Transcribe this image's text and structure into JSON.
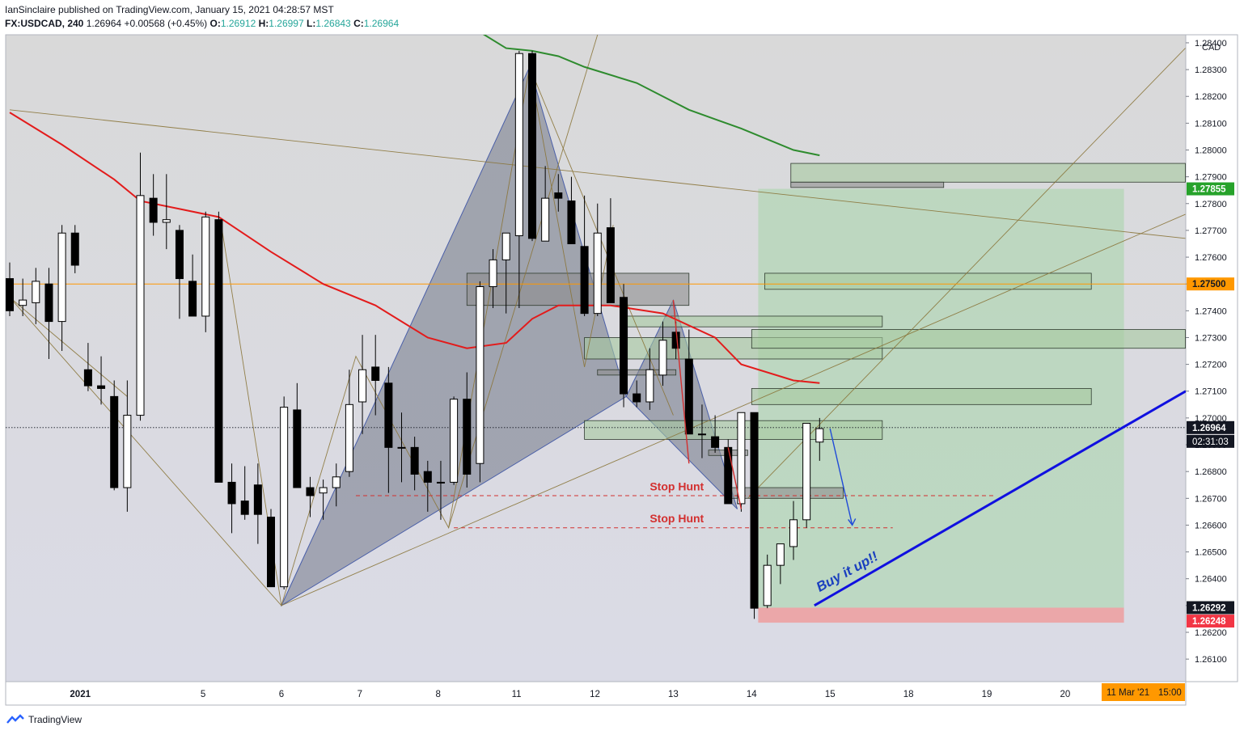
{
  "header": {
    "publisher_line": "IanSinclaire published on TradingView.com, January 15, 2021 04:28:57 MST",
    "symbol": "FX:USDCAD, 240",
    "last": "1.26964",
    "change": "+0.00568 (+0.45%)",
    "open_label": "O:",
    "open": "1.26912",
    "high_label": "H:",
    "high": "1.26997",
    "low_label": "L:",
    "low": "1.26843",
    "close_label": "C:",
    "close": "1.26964"
  },
  "footer": {
    "brand": "TradingView",
    "icon": "tradingview-logo-icon"
  },
  "chart_data": {
    "type": "candlestick",
    "currency_label": "CAD",
    "y_range": [
      1.2602,
      1.2843
    ],
    "y_ticks": [
      "1.28400",
      "1.28300",
      "1.28200",
      "1.28100",
      "1.28000",
      "1.27900",
      "1.27800",
      "1.27700",
      "1.27600",
      "1.27500",
      "1.27400",
      "1.27300",
      "1.27200",
      "1.27100",
      "1.27000",
      "1.26900",
      "1.26800",
      "1.26700",
      "1.26600",
      "1.26500",
      "1.26400",
      "1.26300",
      "1.26200",
      "1.26100"
    ],
    "x_ticks": [
      {
        "label": "2021",
        "slot": 5.4
      },
      {
        "label": "5",
        "slot": 14.8
      },
      {
        "label": "6",
        "slot": 20.8
      },
      {
        "label": "7",
        "slot": 26.8
      },
      {
        "label": "8",
        "slot": 32.8
      },
      {
        "label": "11",
        "slot": 38.8
      },
      {
        "label": "12",
        "slot": 44.8
      },
      {
        "label": "13",
        "slot": 50.8
      },
      {
        "label": "14",
        "slot": 56.8
      },
      {
        "label": "15",
        "slot": 62.8
      },
      {
        "label": "18",
        "slot": 68.8
      },
      {
        "label": "19",
        "slot": 74.8
      },
      {
        "label": "20",
        "slot": 80.8
      }
    ],
    "candles_ohlc": [
      [
        1.2752,
        1.2758,
        1.2738,
        1.274
      ],
      [
        1.2742,
        1.2752,
        1.2738,
        1.2744
      ],
      [
        1.2743,
        1.2756,
        1.2735,
        1.2751
      ],
      [
        1.275,
        1.2756,
        1.2722,
        1.2736
      ],
      [
        1.2736,
        1.2772,
        1.2725,
        1.2769
      ],
      [
        1.2769,
        1.2772,
        1.2754,
        1.2757
      ],
      [
        1.2718,
        1.2728,
        1.271,
        1.2712
      ],
      [
        1.2712,
        1.2723,
        1.2705,
        1.2711
      ],
      [
        1.2708,
        1.2714,
        1.2673,
        1.2674
      ],
      [
        1.2674,
        1.2714,
        1.2665,
        1.2701
      ],
      [
        1.2701,
        1.2799,
        1.2699,
        1.2783
      ],
      [
        1.2782,
        1.2791,
        1.2768,
        1.2773
      ],
      [
        1.2773,
        1.2791,
        1.2763,
        1.2774
      ],
      [
        1.277,
        1.2772,
        1.2737,
        1.2752
      ],
      [
        1.2751,
        1.2761,
        1.2743,
        1.2738
      ],
      [
        1.2738,
        1.2777,
        1.2732,
        1.2775
      ],
      [
        1.2774,
        1.2777,
        1.2678,
        1.2676
      ],
      [
        1.2676,
        1.2683,
        1.2657,
        1.2668
      ],
      [
        1.2669,
        1.2682,
        1.2662,
        1.2664
      ],
      [
        1.2675,
        1.2683,
        1.2653,
        1.2664
      ],
      [
        1.2663,
        1.2666,
        1.2649,
        1.2637
      ],
      [
        1.2637,
        1.2708,
        1.2636,
        1.2704
      ],
      [
        1.2703,
        1.2713,
        1.2678,
        1.2674
      ],
      [
        1.2674,
        1.2678,
        1.2663,
        1.2671
      ],
      [
        1.2672,
        1.2677,
        1.2662,
        1.2674
      ],
      [
        1.2674,
        1.2683,
        1.2667,
        1.2678
      ],
      [
        1.268,
        1.2718,
        1.2678,
        1.2705
      ],
      [
        1.2706,
        1.2731,
        1.2694,
        1.2718
      ],
      [
        1.2719,
        1.2731,
        1.2701,
        1.2714
      ],
      [
        1.2713,
        1.2719,
        1.2672,
        1.2689
      ],
      [
        1.2689,
        1.2702,
        1.2676,
        1.2689
      ],
      [
        1.2689,
        1.2693,
        1.2673,
        1.2679
      ],
      [
        1.268,
        1.2684,
        1.2665,
        1.2676
      ],
      [
        1.2676,
        1.2684,
        1.2662,
        1.2676
      ],
      [
        1.2676,
        1.2708,
        1.2675,
        1.2707
      ],
      [
        1.2707,
        1.2717,
        1.2674,
        1.2679
      ],
      [
        1.2683,
        1.2751,
        1.2676,
        1.2749
      ],
      [
        1.2749,
        1.2763,
        1.2741,
        1.2759
      ],
      [
        1.2759,
        1.2763,
        1.2739,
        1.2769
      ],
      [
        1.2768,
        1.2837,
        1.2741,
        1.2836
      ],
      [
        1.2836,
        1.2837,
        1.2766,
        1.2767
      ],
      [
        1.2766,
        1.2794,
        1.2768,
        1.2782
      ],
      [
        1.2784,
        1.2791,
        1.2777,
        1.2782
      ],
      [
        1.2781,
        1.279,
        1.2765,
        1.2765
      ],
      [
        1.2764,
        1.2783,
        1.2738,
        1.2739
      ],
      [
        1.2739,
        1.278,
        1.2738,
        1.2769
      ],
      [
        1.2771,
        1.2782,
        1.2743,
        1.2743
      ],
      [
        1.2745,
        1.275,
        1.2704,
        1.2709
      ],
      [
        1.2709,
        1.2714,
        1.2704,
        1.2706
      ],
      [
        1.2706,
        1.2726,
        1.2703,
        1.2718
      ],
      [
        1.2716,
        1.2736,
        1.2712,
        1.2729
      ],
      [
        1.2732,
        1.2736,
        1.2722,
        1.2726
      ],
      [
        1.2722,
        1.2733,
        1.2697,
        1.2694
      ],
      [
        1.2694,
        1.2705,
        1.2685,
        1.2694
      ],
      [
        1.2693,
        1.2701,
        1.2687,
        1.2689
      ],
      [
        1.2689,
        1.2692,
        1.2672,
        1.2668
      ],
      [
        1.2668,
        1.2689,
        1.2665,
        1.2702
      ],
      [
        1.2702,
        1.2702,
        1.2625,
        1.2629
      ],
      [
        1.263,
        1.2649,
        1.2629,
        1.2645
      ],
      [
        1.2645,
        1.2653,
        1.2638,
        1.2653
      ],
      [
        1.2652,
        1.2669,
        1.2647,
        1.2662
      ],
      [
        1.2662,
        1.2698,
        1.2659,
        1.2698
      ],
      [
        1.2691,
        1.27,
        1.2684,
        1.2696
      ]
    ],
    "sma_red": [
      [
        0,
        1.2814
      ],
      [
        4,
        1.2802
      ],
      [
        8,
        1.2789
      ],
      [
        10,
        1.2781
      ],
      [
        13,
        1.2778
      ],
      [
        16,
        1.2775
      ],
      [
        20,
        1.2762
      ],
      [
        24,
        1.275
      ],
      [
        28,
        1.2742
      ],
      [
        32,
        1.273
      ],
      [
        35,
        1.2726
      ],
      [
        38,
        1.2728
      ],
      [
        40,
        1.2737
      ],
      [
        42,
        1.2742
      ],
      [
        46,
        1.2742
      ],
      [
        50,
        1.2739
      ],
      [
        54,
        1.273
      ],
      [
        56,
        1.272
      ],
      [
        60,
        1.2714
      ],
      [
        62,
        1.2713
      ]
    ],
    "sma_green": [
      [
        36,
        1.2844
      ],
      [
        38,
        1.2838
      ],
      [
        40,
        1.2837
      ],
      [
        42,
        1.2835
      ],
      [
        44,
        1.2831
      ],
      [
        48,
        1.2825
      ],
      [
        52,
        1.2815
      ],
      [
        56,
        1.2808
      ],
      [
        60,
        1.28
      ],
      [
        62,
        1.2798
      ]
    ],
    "annotations": {
      "stop_hunt_1": "Stop Hunt",
      "stop_hunt_2": "Stop Hunt",
      "buy_text": "Buy it up!!"
    },
    "price_labels": {
      "target": "1.27855",
      "orange_line": "1.27500",
      "last_price": "1.26964",
      "countdown": "02:31:03",
      "entry": "1.26292",
      "stop": "1.26248",
      "future_date": "11 Mar '21",
      "future_time": "15:00"
    },
    "levels": {
      "orange_line": 1.275,
      "last_price": 1.26964,
      "entry": 1.26292,
      "stop": 1.26248,
      "target": 1.27855,
      "stop_hunt_upper": 1.2671,
      "stop_hunt_lower": 1.2659
    },
    "colors": {
      "up": "#ffffff",
      "down": "#000000",
      "sma_red": "#e31b1b",
      "sma_green": "#2e8b2e",
      "orange_line": "#ff9800",
      "trendline_blue": "#1010e0",
      "stop_hunt": "#d32f2f",
      "profit_zone": "#a5d6a7",
      "loss_zone": "#ef9a9a",
      "target_badge": "#26a22a",
      "stop_badge": "#f23645"
    }
  }
}
